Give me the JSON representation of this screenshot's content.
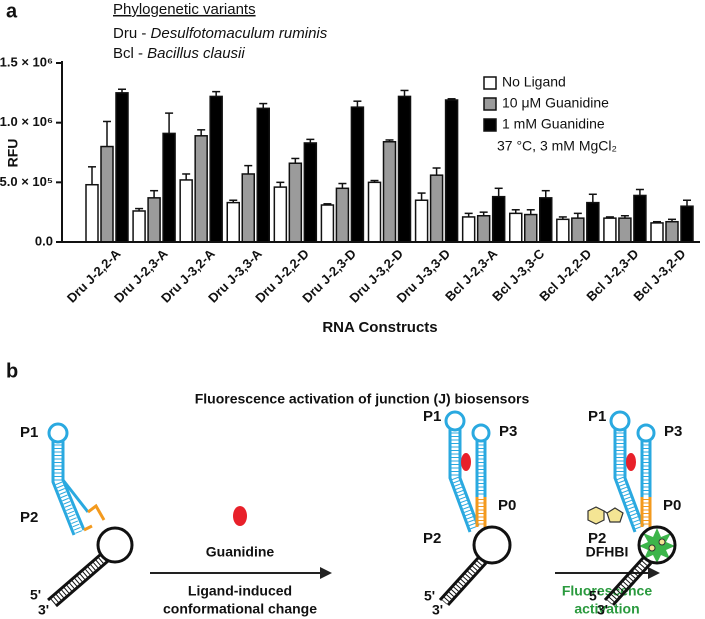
{
  "chart_data": {
    "type": "bar",
    "panel_label": "a",
    "notes_title": "Phylogenetic variants",
    "abbreviations": [
      {
        "abbr": "Dru -",
        "name": "Desulfotomaculum ruminis"
      },
      {
        "abbr": "Bcl -",
        "name": "Bacillus clausii"
      }
    ],
    "ylabel": "RFU",
    "xlabel": "RNA Constructs",
    "condition": "37 °C, 3 mM MgCl₂",
    "categories": [
      "Dru J-2,2-A",
      "Dru J-2,3-A",
      "Dru J-3,2-A",
      "Dru J-3,3-A",
      "Dru J-2,2-D",
      "Dru J-2,3-D",
      "Dru J-3,2-D",
      "Dru J-3,3-D",
      "Bcl J-2,3-A",
      "Bcl J-3,3-C",
      "Bcl J-2,2-D",
      "Bcl J-2,3-D",
      "Bcl J-3,2-D"
    ],
    "series": [
      {
        "name": "No Ligand",
        "color": "#ffffff",
        "values": [
          480000,
          260000,
          520000,
          330000,
          460000,
          310000,
          500000,
          350000,
          210000,
          240000,
          190000,
          200000,
          160000
        ],
        "errors": [
          150000,
          20000,
          50000,
          20000,
          40000,
          10000,
          15000,
          60000,
          30000,
          30000,
          20000,
          10000,
          10000
        ]
      },
      {
        "name": "10 μM Guanidine",
        "color": "#9b9b9b",
        "values": [
          800000,
          370000,
          890000,
          570000,
          660000,
          450000,
          840000,
          560000,
          220000,
          230000,
          200000,
          200000,
          170000
        ],
        "errors": [
          210000,
          60000,
          50000,
          70000,
          40000,
          40000,
          15000,
          60000,
          30000,
          40000,
          40000,
          20000,
          20000
        ]
      },
      {
        "name": "1 mM Guanidine",
        "color": "#000000",
        "values": [
          1250000,
          910000,
          1220000,
          1120000,
          830000,
          1130000,
          1220000,
          1190000,
          380000,
          370000,
          330000,
          390000,
          300000
        ],
        "errors": [
          30000,
          170000,
          40000,
          40000,
          30000,
          50000,
          50000,
          10000,
          70000,
          60000,
          70000,
          50000,
          50000
        ]
      }
    ],
    "ylim": [
      0,
      1500000
    ],
    "yticks": [
      {
        "value": 0,
        "label": "0.0"
      },
      {
        "value": 500000,
        "label": "5.0 × 10⁵"
      },
      {
        "value": 1000000,
        "label": "1.0 × 10⁶"
      },
      {
        "value": 1500000,
        "label": "1.5 × 10⁶"
      }
    ]
  },
  "diagram": {
    "panel_label": "b",
    "title": "Fluorescence activation of junction (J)  biosensors",
    "states": [
      {
        "p1": "P1",
        "p2": "P2",
        "five_prime": "5'",
        "three_prime": "3'"
      },
      {
        "p1": "P1",
        "p3": "P3",
        "p2": "P2",
        "p0": "P0",
        "five_prime": "5'",
        "three_prime": "3'"
      },
      {
        "p1": "P1",
        "p3": "P3",
        "p2": "P2",
        "p0": "P0",
        "five_prime": "5'",
        "three_prime": "3'"
      }
    ],
    "step1": {
      "ligand": "Guanidine",
      "description": [
        "Ligand-induced",
        "conformational change"
      ]
    },
    "step2": {
      "ligand": "DFHBI",
      "description": [
        "Fluorescence",
        "activation"
      ]
    }
  }
}
